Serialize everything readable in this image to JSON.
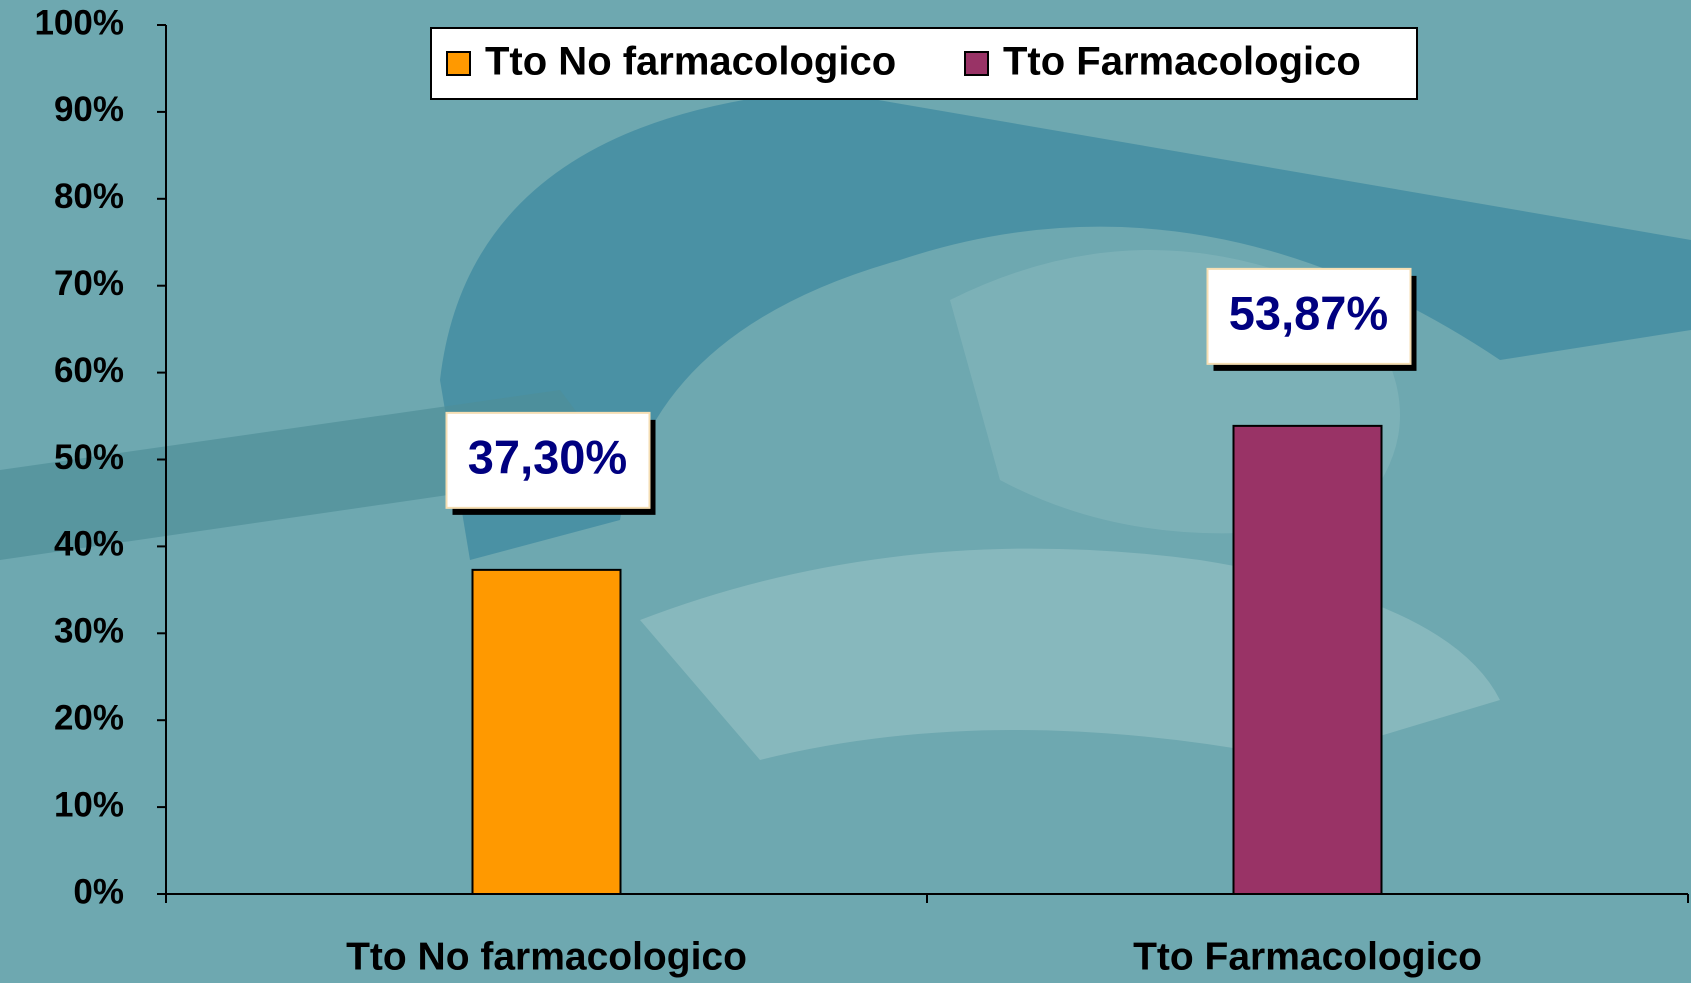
{
  "chart_data": {
    "type": "bar",
    "categories": [
      "Tto No farmacologico",
      "Tto Farmacologico"
    ],
    "series": [
      {
        "name": "Tto No farmacologico",
        "color": "#ff9900",
        "values": [
          37.3,
          null
        ],
        "value_labels": [
          "37,30%",
          null
        ]
      },
      {
        "name": "Tto Farmacologico",
        "color": "#993366",
        "values": [
          null,
          53.87
        ],
        "value_labels": [
          null,
          "53,87%"
        ]
      }
    ],
    "ylim": [
      0,
      100
    ],
    "yticks": [
      {
        "value": 0,
        "label": "0%"
      },
      {
        "value": 10,
        "label": "10%"
      },
      {
        "value": 20,
        "label": "20%"
      },
      {
        "value": 30,
        "label": "30%"
      },
      {
        "value": 40,
        "label": "40%"
      },
      {
        "value": 50,
        "label": "50%"
      },
      {
        "value": 60,
        "label": "60%"
      },
      {
        "value": 70,
        "label": "70%"
      },
      {
        "value": 80,
        "label": "80%"
      },
      {
        "value": 90,
        "label": "90%"
      },
      {
        "value": 100,
        "label": "100%"
      }
    ],
    "grid": false,
    "legend": "top"
  }
}
